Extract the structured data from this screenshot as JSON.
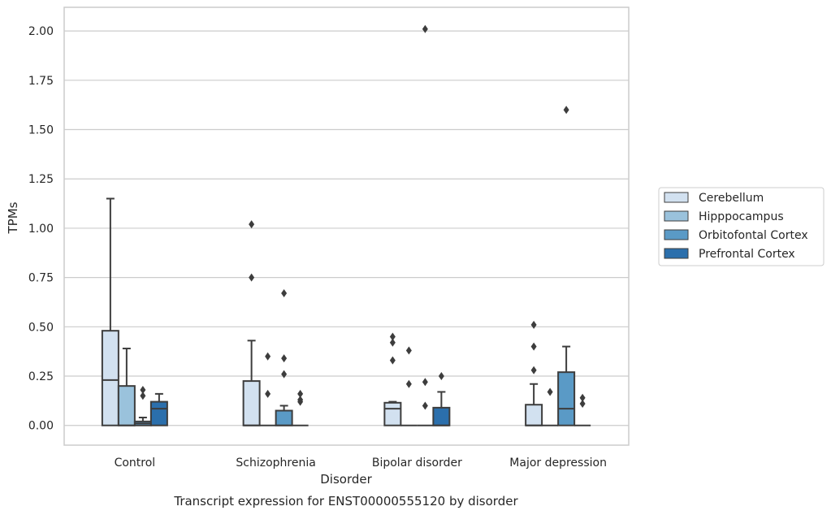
{
  "chart_data": {
    "type": "box",
    "title": "",
    "caption": "Transcript expression for ENST00000555120 by disorder",
    "xlabel": "Disorder",
    "ylabel": "TPMs",
    "ylim": [
      -0.1,
      2.12
    ],
    "yticks": [
      "0.00",
      "0.25",
      "0.50",
      "0.75",
      "1.00",
      "1.25",
      "1.50",
      "1.75",
      "2.00"
    ],
    "grid": true,
    "legend_position": "right",
    "categories": [
      "Control",
      "Schizophrenia",
      "Bipolar disorder",
      "Major depression"
    ],
    "series": [
      {
        "name": "Cerebellum",
        "color": "#d2e1f0",
        "boxes": [
          {
            "q1": 0.0,
            "median": 0.23,
            "q3": 0.48,
            "whisker_low": 0.0,
            "whisker_high": 1.15,
            "outliers": []
          },
          {
            "q1": 0.0,
            "median": 0.0,
            "q3": 0.225,
            "whisker_low": 0.0,
            "whisker_high": 0.43,
            "outliers": [
              0.75,
              1.02
            ]
          },
          {
            "q1": 0.0,
            "median": 0.085,
            "q3": 0.115,
            "whisker_low": 0.0,
            "whisker_high": 0.12,
            "outliers": [
              0.33,
              0.42,
              0.45
            ]
          },
          {
            "q1": 0.0,
            "median": 0.0,
            "q3": 0.105,
            "whisker_low": 0.0,
            "whisker_high": 0.21,
            "outliers": [
              0.28,
              0.4,
              0.51
            ]
          }
        ]
      },
      {
        "name": "Hipppocampus",
        "color": "#9ac2dc",
        "boxes": [
          {
            "q1": 0.0,
            "median": 0.0,
            "q3": 0.2,
            "whisker_low": 0.0,
            "whisker_high": 0.39,
            "outliers": []
          },
          {
            "q1": 0.0,
            "median": 0.0,
            "q3": 0.0,
            "whisker_low": 0.0,
            "whisker_high": 0.0,
            "outliers": [
              0.16,
              0.35
            ]
          },
          {
            "q1": 0.0,
            "median": 0.0,
            "q3": 0.0,
            "whisker_low": 0.0,
            "whisker_high": 0.0,
            "outliers": [
              0.21,
              0.38
            ]
          },
          {
            "q1": 0.0,
            "median": 0.0,
            "q3": 0.0,
            "whisker_low": 0.0,
            "whisker_high": 0.0,
            "outliers": [
              0.17
            ]
          }
        ]
      },
      {
        "name": "Orbitofontal Cortex",
        "color": "#5a9ac6",
        "boxes": [
          {
            "q1": 0.0,
            "median": 0.01,
            "q3": 0.02,
            "whisker_low": 0.0,
            "whisker_high": 0.04,
            "outliers": [
              0.15,
              0.18
            ]
          },
          {
            "q1": 0.0,
            "median": 0.0,
            "q3": 0.075,
            "whisker_low": 0.0,
            "whisker_high": 0.1,
            "outliers": [
              0.26,
              0.34,
              0.67
            ]
          },
          {
            "q1": 0.0,
            "median": 0.0,
            "q3": 0.0,
            "whisker_low": 0.0,
            "whisker_high": 0.0,
            "outliers": [
              0.1,
              0.22,
              2.01
            ]
          },
          {
            "q1": 0.0,
            "median": 0.085,
            "q3": 0.27,
            "whisker_low": 0.0,
            "whisker_high": 0.4,
            "outliers": [
              1.6
            ]
          }
        ]
      },
      {
        "name": "Prefrontal Cortex",
        "color": "#2b6fac",
        "boxes": [
          {
            "q1": 0.0,
            "median": 0.085,
            "q3": 0.12,
            "whisker_low": 0.0,
            "whisker_high": 0.16,
            "outliers": []
          },
          {
            "q1": 0.0,
            "median": 0.0,
            "q3": 0.0,
            "whisker_low": 0.0,
            "whisker_high": 0.0,
            "outliers": [
              0.12,
              0.13,
              0.16
            ]
          },
          {
            "q1": 0.0,
            "median": 0.0,
            "q3": 0.09,
            "whisker_low": 0.0,
            "whisker_high": 0.17,
            "outliers": [
              0.25
            ]
          },
          {
            "q1": 0.0,
            "median": 0.0,
            "q3": 0.0,
            "whisker_low": 0.0,
            "whisker_high": 0.0,
            "outliers": [
              0.11,
              0.14
            ]
          }
        ]
      }
    ]
  }
}
